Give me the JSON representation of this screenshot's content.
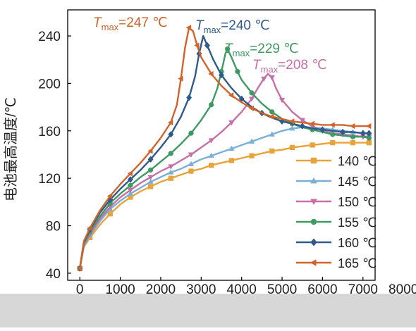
{
  "chart_data": {
    "type": "line",
    "title": "",
    "xlabel": "",
    "ylabel": "电池最高温度/℃",
    "xlim": [
      -300,
      7300
    ],
    "ylim": [
      34,
      262
    ],
    "xticks": [
      0,
      1000,
      2000,
      3000,
      4000,
      5000,
      6000,
      7000,
      8000
    ],
    "yticks": [
      40,
      80,
      120,
      160,
      200,
      240
    ],
    "grid": false,
    "legend": "bottom-right",
    "series": [
      {
        "name": "140 ℃",
        "color": "#e8a33a",
        "marker": "square",
        "x": [
          0,
          100,
          250,
          500,
          750,
          1000,
          1250,
          1500,
          1750,
          2000,
          2250,
          2500,
          2750,
          3000,
          3250,
          3500,
          3750,
          4000,
          4250,
          4500,
          4750,
          5000,
          5250,
          5500,
          5750,
          6000,
          6250,
          6500,
          6750,
          7000,
          7150
        ],
        "y": [
          44,
          62,
          70,
          81,
          90,
          98,
          104,
          109,
          113,
          117,
          120,
          123,
          126,
          128,
          131,
          133,
          135,
          137,
          139,
          141,
          143,
          144,
          146,
          147,
          148,
          149,
          150,
          150,
          150,
          150,
          150
        ]
      },
      {
        "name": "145 ℃",
        "color": "#7ab0d8",
        "marker": "triangle-up",
        "x": [
          0,
          100,
          250,
          500,
          750,
          1000,
          1250,
          1500,
          1750,
          2000,
          2250,
          2500,
          2750,
          3000,
          3250,
          3500,
          3750,
          4000,
          4250,
          4500,
          4750,
          5000,
          5250,
          5500,
          5750,
          6000,
          6250,
          6500,
          6750,
          7000,
          7150
        ],
        "y": [
          44,
          63,
          72,
          84,
          94,
          101,
          107,
          112,
          117,
          121,
          125,
          128,
          132,
          136,
          139,
          142,
          145,
          148,
          151,
          154,
          157,
          160,
          162,
          163,
          163,
          162,
          161,
          160,
          159,
          158,
          158
        ]
      },
      {
        "name": "150 ℃",
        "color": "#c76fa8",
        "marker": "triangle-down",
        "x": [
          0,
          100,
          250,
          500,
          750,
          1000,
          1250,
          1500,
          1750,
          2000,
          2250,
          2500,
          2750,
          3000,
          3250,
          3500,
          3750,
          4000,
          4250,
          4400,
          4550,
          4650,
          4750,
          4850,
          5000,
          5250,
          5500,
          5750,
          6000,
          6250,
          6500,
          6750,
          7000,
          7150
        ],
        "y": [
          44,
          64,
          73,
          86,
          96,
          104,
          110,
          116,
          121,
          126,
          130,
          135,
          140,
          146,
          152,
          159,
          167,
          176,
          187,
          196,
          204,
          208,
          205,
          196,
          186,
          176,
          169,
          164,
          160,
          158,
          157,
          156,
          155,
          155
        ]
      },
      {
        "name": "155 ℃",
        "color": "#3d9a63",
        "marker": "circle",
        "x": [
          0,
          100,
          250,
          500,
          750,
          1000,
          1250,
          1500,
          1750,
          2000,
          2250,
          2500,
          2750,
          3000,
          3250,
          3400,
          3500,
          3600,
          3650,
          3750,
          3900,
          4000,
          4250,
          4500,
          4750,
          5000,
          5250,
          5500,
          5750,
          6000,
          6250,
          6500,
          6750,
          7000,
          7150
        ],
        "y": [
          44,
          65,
          75,
          88,
          99,
          107,
          114,
          121,
          127,
          134,
          141,
          149,
          158,
          169,
          182,
          196,
          210,
          225,
          229,
          222,
          210,
          203,
          192,
          183,
          176,
          170,
          166,
          163,
          161,
          159,
          157,
          156,
          155,
          155,
          154
        ]
      },
      {
        "name": "160 ℃",
        "color": "#2f5b8c",
        "marker": "diamond",
        "x": [
          0,
          100,
          250,
          500,
          750,
          1000,
          1250,
          1500,
          1750,
          2000,
          2250,
          2500,
          2700,
          2850,
          2950,
          3050,
          3150,
          3300,
          3500,
          3750,
          4000,
          4250,
          4500,
          4750,
          5000,
          5250,
          5500,
          5750,
          6000,
          6250,
          6500,
          6750,
          7000,
          7150
        ],
        "y": [
          44,
          66,
          77,
          91,
          102,
          111,
          119,
          127,
          136,
          146,
          157,
          172,
          188,
          206,
          225,
          240,
          232,
          220,
          207,
          196,
          187,
          180,
          175,
          171,
          168,
          166,
          164,
          162,
          161,
          160,
          159,
          159,
          158,
          158
        ]
      },
      {
        "name": "165 ℃",
        "color": "#d1642a",
        "marker": "triangle-left",
        "x": [
          0,
          100,
          250,
          500,
          750,
          1000,
          1250,
          1500,
          1750,
          2000,
          2250,
          2400,
          2500,
          2600,
          2700,
          2800,
          2900,
          3000,
          3250,
          3500,
          3750,
          4000,
          4250,
          4500,
          4750,
          5000,
          5250,
          5500,
          5750,
          6000,
          6250,
          6500,
          6750,
          7000,
          7150
        ],
        "y": [
          44,
          67,
          78,
          93,
          105,
          115,
          124,
          133,
          143,
          154,
          167,
          182,
          204,
          230,
          247,
          244,
          232,
          222,
          208,
          198,
          190,
          184,
          179,
          175,
          172,
          170,
          168,
          167,
          166,
          165,
          165,
          165,
          164,
          164,
          164
        ]
      }
    ],
    "annotations": [
      {
        "prefix": "T",
        "sub": "max",
        "text": "=247 ℃",
        "color": "#d1642a"
      },
      {
        "prefix": "T",
        "sub": "max",
        "text": "=240 ℃",
        "color": "#2f5b8c"
      },
      {
        "prefix": "T",
        "sub": "max",
        "text": "=229 ℃",
        "color": "#3d9a63"
      },
      {
        "prefix": "T",
        "sub": "max",
        "text": "=208 ℃",
        "color": "#c76fa8"
      }
    ]
  }
}
